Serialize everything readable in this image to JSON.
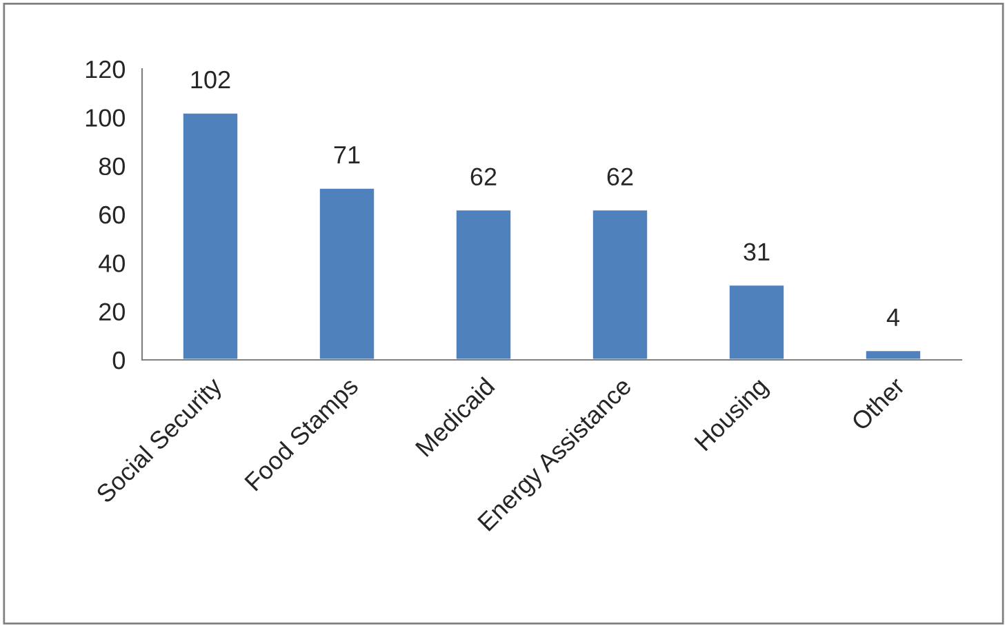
{
  "chart_data": {
    "type": "bar",
    "categories": [
      "Social Security",
      "Food Stamps",
      "Medicaid",
      "Energy Assistance",
      "Housing",
      "Other"
    ],
    "values": [
      102,
      71,
      62,
      62,
      31,
      4
    ],
    "color": "#4f81bd",
    "ylim": [
      0,
      120
    ],
    "yticks": [
      0,
      20,
      40,
      60,
      80,
      100,
      120
    ],
    "grid": false,
    "legend": false,
    "data_labels": true
  }
}
